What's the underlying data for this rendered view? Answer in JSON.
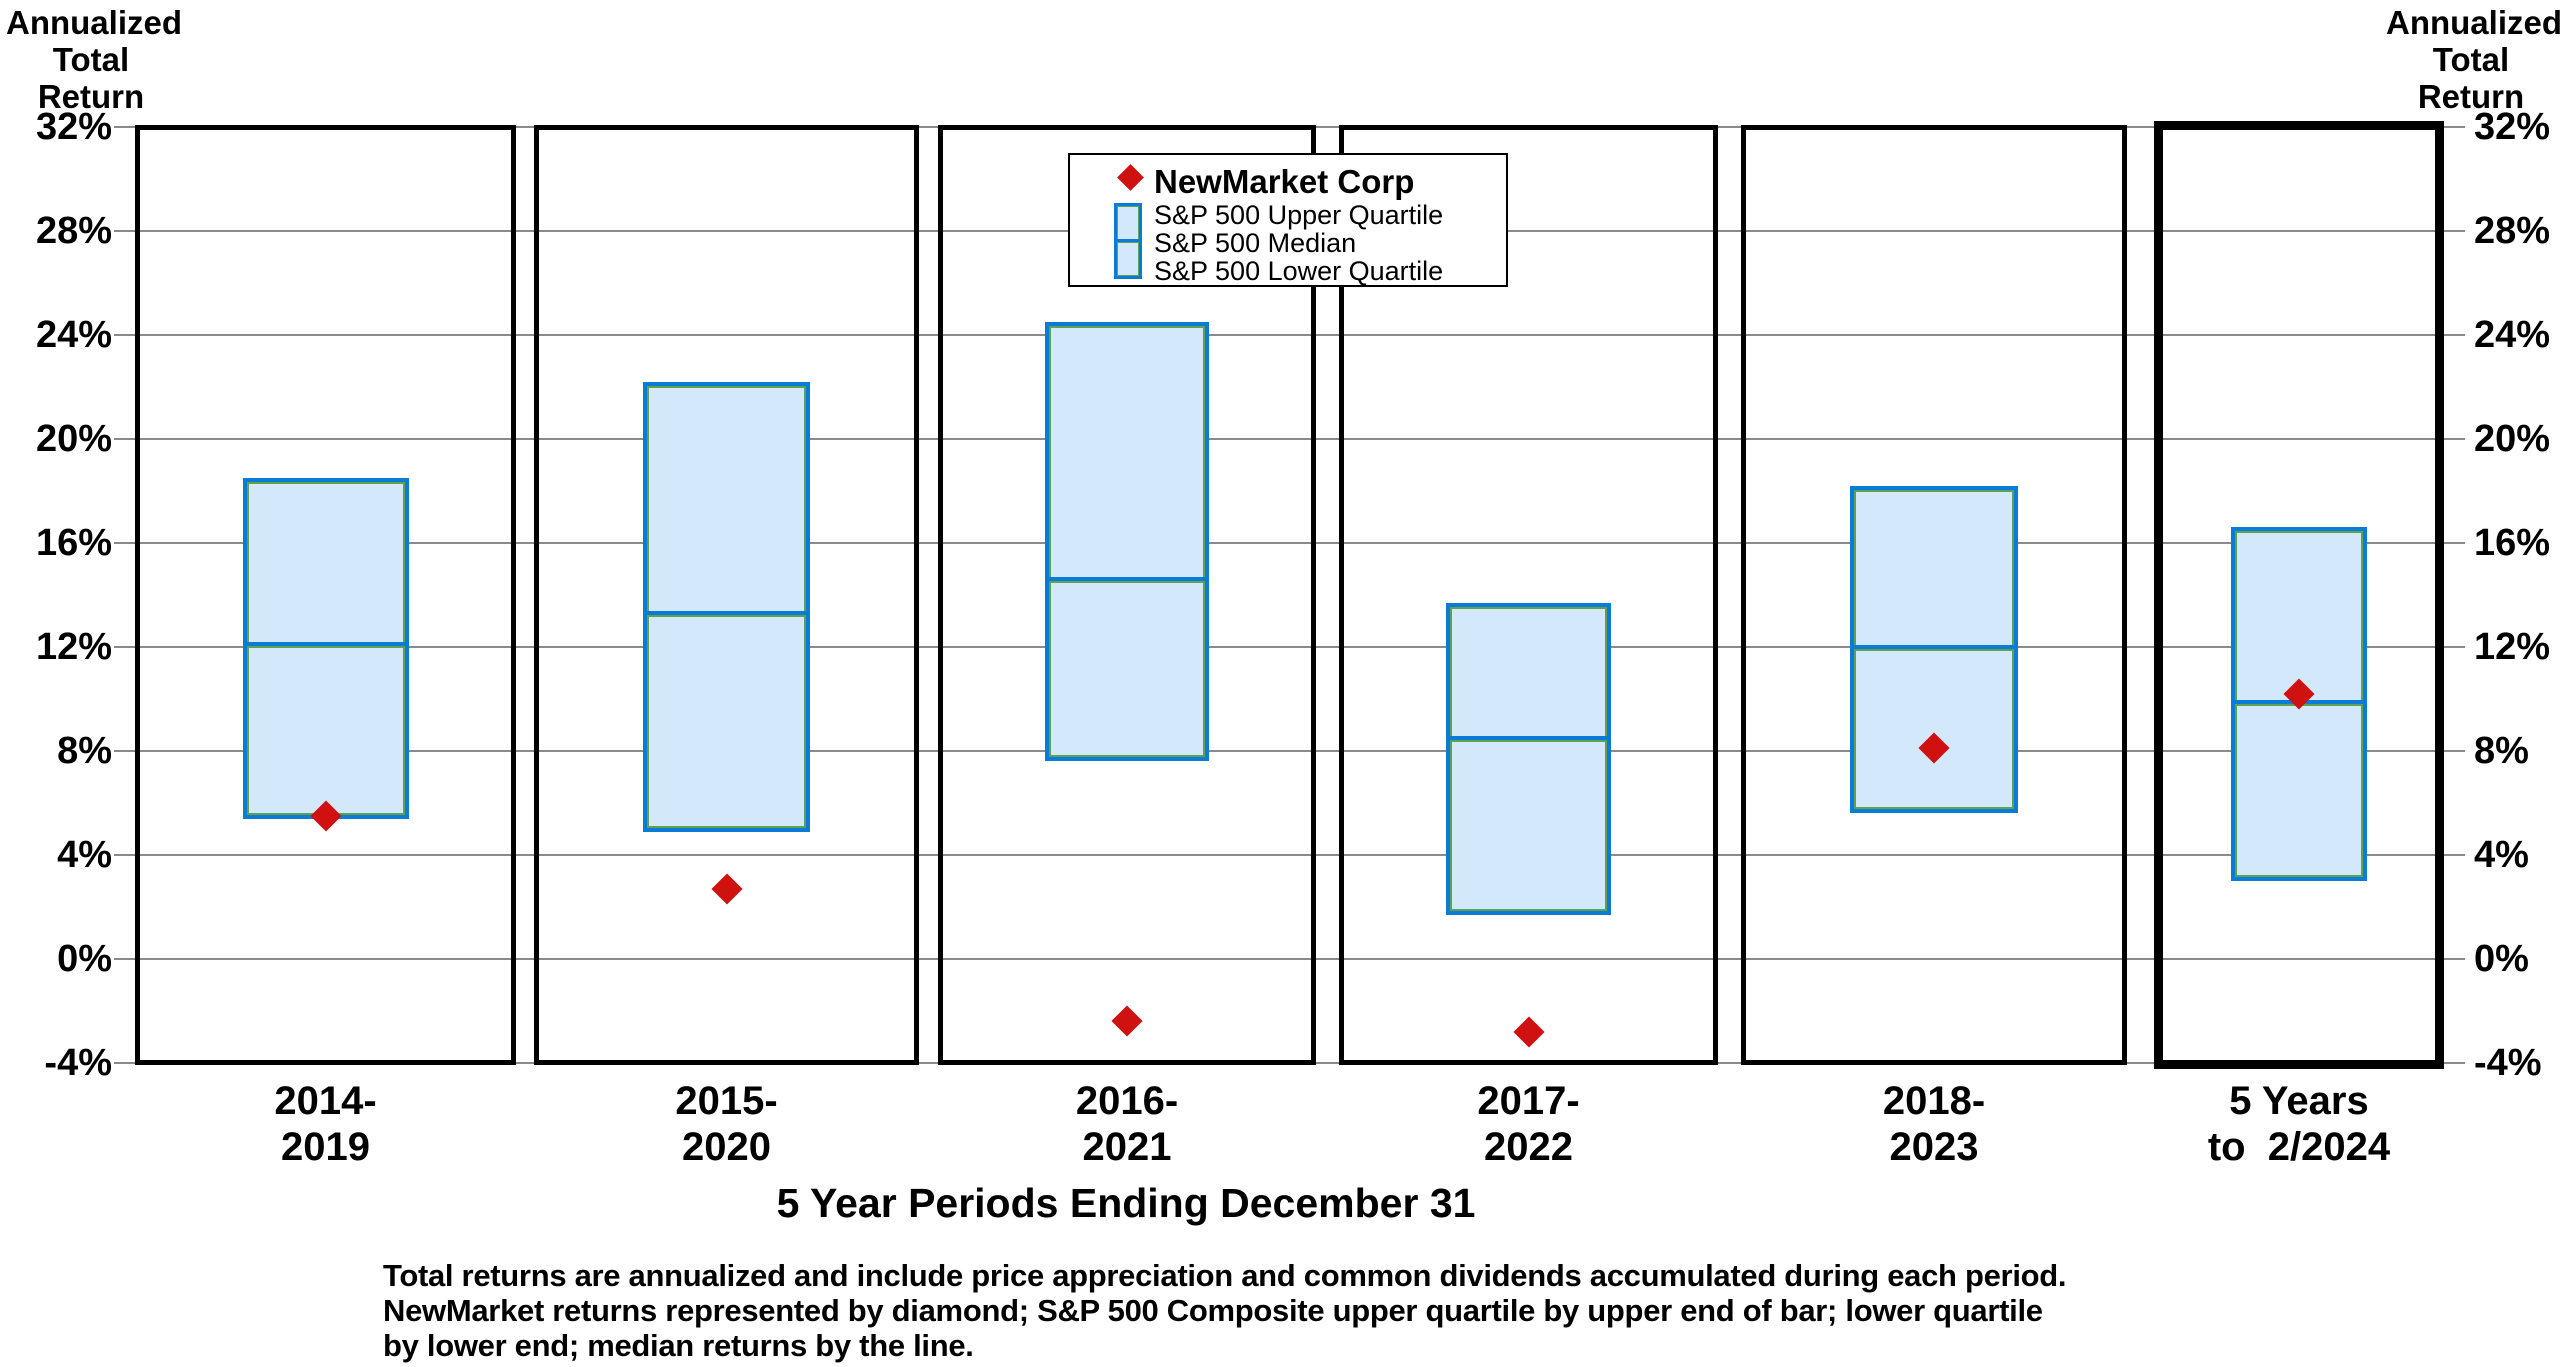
{
  "axis_title_left": [
    "Annualized",
    "Total",
    "Return"
  ],
  "axis_title_right": [
    "Annualized",
    "Total",
    "Return"
  ],
  "xaxis_title": "5 Year Periods Ending December 31",
  "legend": {
    "items": [
      "NewMarket Corp",
      "S&P 500 Upper Quartile",
      "S&P 500 Median",
      "S&P 500 Lower Quartile"
    ]
  },
  "footnote": {
    "lines": [
      "Total returns are annualized and include price appreciation and common dividends accumulated during each period.",
      "NewMarket returns represented by diamond; S&P 500 Composite upper quartile by upper end of bar; lower quartile",
      "by lower end; median returns by the line."
    ]
  },
  "colors": {
    "bar_fill": "#d4e8fb",
    "bar_border": "#0b7bd8",
    "bar_inner_outline": "#5ba350",
    "median_line": "#0b7bd8",
    "diamond": "#cf1110",
    "gridline": "#8a8a8a",
    "panel_border": "#000000",
    "text": "#000000",
    "background": "#ffffff"
  },
  "chart_data": {
    "type": "bar",
    "subtype": "floating-quartile-bars-with-point-markers",
    "title": "",
    "xlabel": "5 Year Periods Ending December 31",
    "ylabel": "Annualized Total Return",
    "ylim": [
      -4,
      32
    ],
    "grid": true,
    "legend_position": "top-center",
    "yticks": [
      32,
      28,
      24,
      20,
      16,
      12,
      8,
      4,
      0,
      -4
    ],
    "ytick_labels": [
      "32%",
      "28%",
      "24%",
      "20%",
      "16%",
      "12%",
      "8%",
      "4%",
      "0%",
      "-4%"
    ],
    "categories": [
      "2014-2019",
      "2015-2020",
      "2016-2021",
      "2017-2022",
      "2018-2023",
      "5 Years to 2/2024"
    ],
    "panels": [
      {
        "label_lines": [
          "2014-",
          "2019"
        ],
        "highlight": false
      },
      {
        "label_lines": [
          "2015-",
          "2020"
        ],
        "highlight": false
      },
      {
        "label_lines": [
          "2016-",
          "2021"
        ],
        "highlight": false
      },
      {
        "label_lines": [
          "2017-",
          "2022"
        ],
        "highlight": false
      },
      {
        "label_lines": [
          "2018-",
          "2023"
        ],
        "highlight": false
      },
      {
        "label_lines": [
          "5 Years",
          "to  2/2024"
        ],
        "highlight": true
      }
    ],
    "series": [
      {
        "name": "S&P 500 Upper Quartile",
        "values": [
          18.5,
          22.2,
          24.5,
          13.7,
          18.2,
          16.6
        ]
      },
      {
        "name": "S&P 500 Median",
        "values": [
          12.1,
          13.3,
          14.6,
          8.5,
          12.0,
          9.9
        ]
      },
      {
        "name": "S&P 500 Lower Quartile",
        "values": [
          5.4,
          4.9,
          7.6,
          1.7,
          5.6,
          3.0
        ]
      },
      {
        "name": "NewMarket Corp",
        "values": [
          5.5,
          2.7,
          -2.4,
          -2.8,
          8.1,
          10.2
        ]
      }
    ]
  }
}
